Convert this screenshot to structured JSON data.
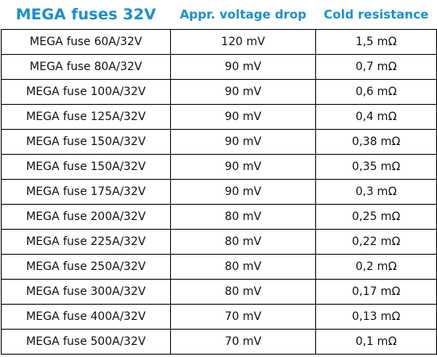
{
  "table": {
    "header": [
      "MEGA fuses 32V",
      "Appr. voltage drop",
      "Cold resistance"
    ],
    "rows": [
      [
        "MEGA fuse 60A/32V",
        "120 mV",
        "1,5 mΩ"
      ],
      [
        "MEGA fuse 80A/32V",
        "90 mV",
        "0,7 mΩ"
      ],
      [
        "MEGA fuse 100A/32V",
        "90 mV",
        "0,6 mΩ"
      ],
      [
        "MEGA fuse 125A/32V",
        "90 mV",
        "0,4 mΩ"
      ],
      [
        "MEGA fuse 150A/32V",
        "90 mV",
        "0,38 mΩ"
      ],
      [
        "MEGA fuse 150A/32V",
        "90 mV",
        "0,35 mΩ"
      ],
      [
        "MEGA fuse 175A/32V",
        "90 mV",
        "0,3 mΩ"
      ],
      [
        "MEGA fuse 200A/32V",
        "80 mV",
        "0,25 mΩ"
      ],
      [
        "MEGA fuse 225A/32V",
        "80 mV",
        "0,22 mΩ"
      ],
      [
        "MEGA fuse 250A/32V",
        "80 mV",
        "0,2 mΩ"
      ],
      [
        "MEGA fuse 300A/32V",
        "80 mV",
        "0,17 mΩ"
      ],
      [
        "MEGA fuse 400A/32V",
        "70 mV",
        "0,13 mΩ"
      ],
      [
        "MEGA fuse 500A/32V",
        "70 mV",
        "0,1 mΩ"
      ]
    ]
  }
}
